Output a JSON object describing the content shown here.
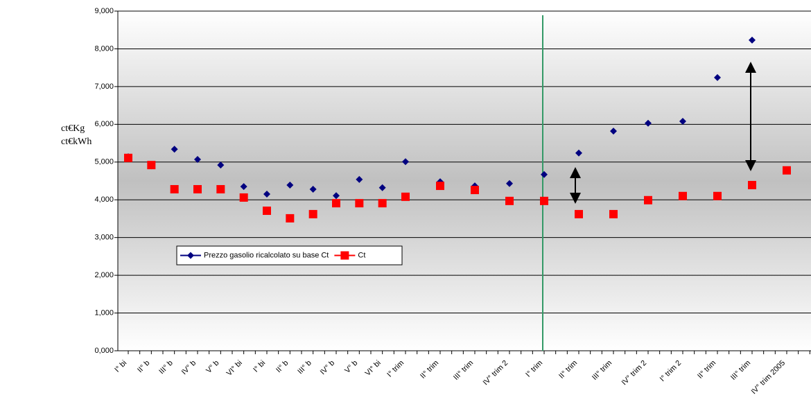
{
  "chart_data": {
    "type": "scatter",
    "y_label": [
      "ct€Kg",
      "ct€kWh"
    ],
    "categories": [
      "I° bi",
      null,
      "II° b",
      null,
      "III° b",
      null,
      "IV° b",
      null,
      "V° b",
      null,
      "VI° bi",
      null,
      "I° bi",
      null,
      "II° b",
      null,
      "III° b",
      null,
      "IV° b",
      null,
      "V° b",
      null,
      "VI° bi",
      null,
      "I° trim",
      null,
      null,
      "II° trim",
      null,
      null,
      "III° trim",
      null,
      null,
      "IV° trim 2",
      null,
      null,
      "I° trim",
      null,
      null,
      "II° trim",
      null,
      null,
      "III° trim",
      null,
      null,
      "IV° trim 2",
      null,
      null,
      "I° trim 2",
      null,
      null,
      "II° trim",
      null,
      null,
      "III° trim",
      null,
      null,
      "IV° trim 2005",
      null,
      null
    ],
    "series": [
      {
        "name": "Prezzo gasolio ricalcolato su base Ct",
        "color": "#000080",
        "marker": "diamond",
        "values": [
          5140,
          null,
          4900,
          null,
          5340,
          null,
          5070,
          null,
          4920,
          null,
          4350,
          null,
          4150,
          null,
          4390,
          null,
          4280,
          null,
          4110,
          null,
          4540,
          null,
          4320,
          null,
          5010,
          null,
          null,
          4480,
          null,
          null,
          4370,
          null,
          null,
          4430,
          null,
          null,
          4670,
          null,
          null,
          5240,
          null,
          null,
          5820,
          null,
          null,
          6030,
          null,
          null,
          6080,
          null,
          null,
          7240,
          null,
          null,
          8230,
          null,
          null,
          null,
          null,
          null
        ]
      },
      {
        "name": "Ct",
        "color": "#ff0000",
        "marker": "square",
        "values": [
          5110,
          null,
          4920,
          null,
          4280,
          null,
          4280,
          null,
          4280,
          null,
          4060,
          null,
          3710,
          null,
          3510,
          null,
          3620,
          null,
          3910,
          null,
          3910,
          null,
          3910,
          null,
          4080,
          null,
          null,
          4370,
          null,
          null,
          4260,
          null,
          null,
          3970,
          null,
          null,
          3970,
          null,
          null,
          3620,
          null,
          null,
          3620,
          null,
          null,
          3990,
          null,
          null,
          4100,
          null,
          null,
          4100,
          null,
          null,
          4390,
          null,
          null,
          4780,
          null,
          null
        ]
      }
    ],
    "ylim": [
      0,
      9000
    ],
    "yticks": [
      {
        "value": 0,
        "label": "0,000"
      },
      {
        "value": 1000,
        "label": "1,000"
      },
      {
        "value": 2000,
        "label": "2,000"
      },
      {
        "value": 3000,
        "label": "3,000"
      },
      {
        "value": 4000,
        "label": "4,000"
      },
      {
        "value": 5000,
        "label": "5,000"
      },
      {
        "value": 6000,
        "label": "6,000"
      },
      {
        "value": 7000,
        "label": "7,000"
      },
      {
        "value": 8000,
        "label": "8,000"
      },
      {
        "value": 9000,
        "label": "9,000"
      }
    ],
    "grid": true
  }
}
